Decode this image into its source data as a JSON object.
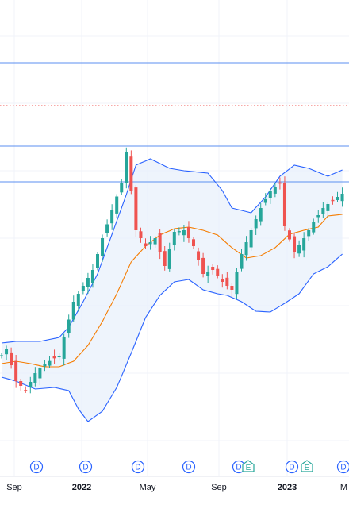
{
  "chart_data": {
    "type": "candlestick",
    "title": "",
    "grid": true,
    "colors": {
      "up": "#26a69a",
      "down": "#ef5350",
      "band_line": "#2962ff",
      "band_fill": "#e8f0fb",
      "middle_band": "#f57c00",
      "level_line": "#5b8ff0",
      "dotted_level": "#ef5350",
      "grid": "#f0f3fa",
      "text": "#131722"
    },
    "x_axis_labels": [
      "Sep",
      "2022",
      "May",
      "Sep",
      "2023",
      "M"
    ],
    "markers": [
      {
        "label": "D",
        "type": "dividend"
      },
      {
        "label": "D",
        "type": "dividend"
      },
      {
        "label": "D",
        "type": "dividend"
      },
      {
        "label": "D",
        "type": "dividend"
      },
      {
        "label": "D",
        "type": "dividend"
      },
      {
        "label": "E",
        "type": "earnings"
      },
      {
        "label": "D",
        "type": "dividend"
      },
      {
        "label": "E",
        "type": "earnings"
      },
      {
        "label": "D",
        "type": "dividend"
      }
    ],
    "indicators": [
      "Bollinger Bands (upper, basis, lower)",
      "horizontal levels"
    ]
  }
}
